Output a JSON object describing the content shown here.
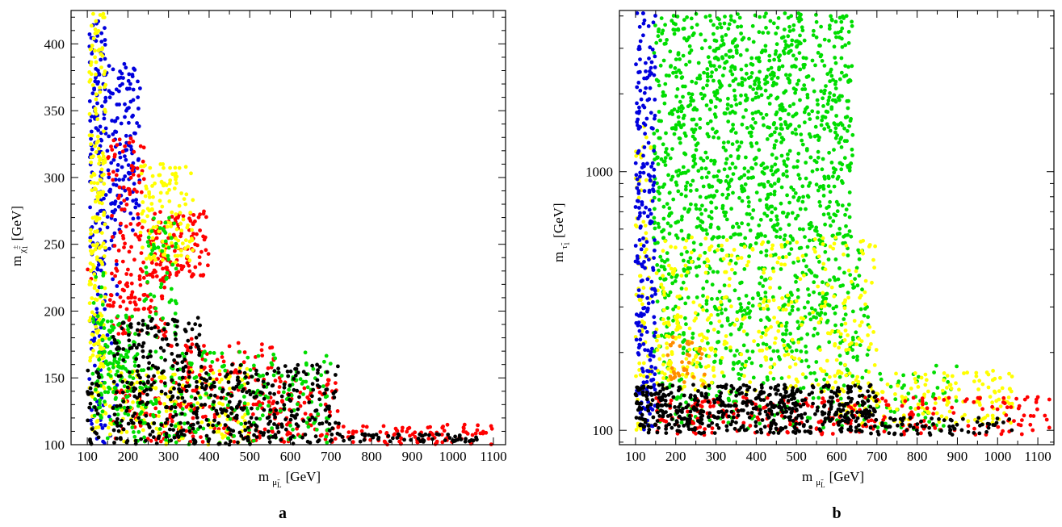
{
  "chart_data": [
    {
      "type": "scatter",
      "panel_label": "a",
      "xlabel": {
        "main": "m",
        "sub": "μ̃",
        "subsub": "L",
        "unit": "[GeV]"
      },
      "ylabel": {
        "main": "m",
        "sub": "χ̃",
        "sup": "±",
        "subsub": "1",
        "unit": "[GeV]"
      },
      "xlim": [
        60,
        1130
      ],
      "ylim": [
        100,
        425
      ],
      "yscale": "linear",
      "xticks": [
        100,
        200,
        300,
        400,
        500,
        600,
        700,
        800,
        900,
        1000,
        1100
      ],
      "yticks": [
        100,
        150,
        200,
        250,
        300,
        350,
        400
      ],
      "grid": false,
      "legend": "none",
      "series": [
        {
          "color": "#0000dd",
          "regions": [
            {
              "x": [
                105,
                145
              ],
              "y": [
                100,
                420
              ],
              "n": 160
            },
            {
              "x": [
                145,
                230
              ],
              "y": [
                260,
                385
              ],
              "n": 140
            },
            {
              "x": [
                120,
                175
              ],
              "y": [
                100,
                260
              ],
              "n": 40
            }
          ]
        },
        {
          "color": "#ff0000",
          "regions": [
            {
              "x": [
                150,
                240
              ],
              "y": [
                200,
                330
              ],
              "n": 110
            },
            {
              "x": [
                250,
                400
              ],
              "y": [
                225,
                275
              ],
              "n": 130
            },
            {
              "x": [
                150,
                300
              ],
              "y": [
                180,
                230
              ],
              "n": 60
            },
            {
              "x": [
                160,
                720
              ],
              "y": [
                102,
                150
              ],
              "n": 260
            },
            {
              "x": [
                720,
                1110
              ],
              "y": [
                100,
                115
              ],
              "n": 90
            },
            {
              "x": [
                300,
                560
              ],
              "y": [
                150,
                180
              ],
              "n": 60
            },
            {
              "x": [
                100,
                110
              ],
              "y": [
                220,
                232
              ],
              "n": 3
            }
          ]
        },
        {
          "color": "#ffff00",
          "regions": [
            {
              "x": [
                105,
                145
              ],
              "y": [
                110,
                425
              ],
              "n": 220
            },
            {
              "x": [
                230,
                360
              ],
              "y": [
                235,
                310
              ],
              "n": 130
            },
            {
              "x": [
                140,
                500
              ],
              "y": [
                100,
                160
              ],
              "n": 160
            }
          ]
        },
        {
          "color": "#00dd00",
          "regions": [
            {
              "x": [
                130,
                220
              ],
              "y": [
                120,
                200
              ],
              "n": 90
            },
            {
              "x": [
                240,
                320
              ],
              "y": [
                180,
                270
              ],
              "n": 60
            },
            {
              "x": [
                150,
                700
              ],
              "y": [
                100,
                170
              ],
              "n": 260
            },
            {
              "x": [
                110,
                140
              ],
              "y": [
                120,
                230
              ],
              "n": 30
            }
          ]
        },
        {
          "color": "#000000",
          "regions": [
            {
              "x": [
                160,
                720
              ],
              "y": [
                100,
                160
              ],
              "n": 420
            },
            {
              "x": [
                160,
                380
              ],
              "y": [
                160,
                195
              ],
              "n": 90
            },
            {
              "x": [
                720,
                1060
              ],
              "y": [
                102,
                108
              ],
              "n": 60
            },
            {
              "x": [
                100,
                130
              ],
              "y": [
                100,
                160
              ],
              "n": 30
            }
          ]
        }
      ]
    },
    {
      "type": "scatter",
      "panel_label": "b",
      "xlabel": {
        "main": "m",
        "sub": "μ̃",
        "subsub": "L",
        "unit": "[GeV]"
      },
      "ylabel": {
        "main": "m",
        "sub": "τ̃",
        "subsub": "1",
        "unit": "[GeV]"
      },
      "xlim": [
        60,
        1140
      ],
      "ylim": [
        88,
        4200
      ],
      "yscale": "log",
      "xticks": [
        100,
        200,
        300,
        400,
        500,
        600,
        700,
        800,
        900,
        1000,
        1100
      ],
      "yticks": [
        100,
        1000
      ],
      "grid": false,
      "legend": "none",
      "series": [
        {
          "color": "#00dd00",
          "regions": [
            {
              "x": [
                145,
                640
              ],
              "y": [
                500,
                4100
              ],
              "n": 1150
            },
            {
              "x": [
                145,
                680
              ],
              "y": [
                180,
                500
              ],
              "n": 420
            },
            {
              "x": [
                150,
                900
              ],
              "y": [
                100,
                180
              ],
              "n": 200
            }
          ]
        },
        {
          "color": "#ffff00",
          "regions": [
            {
              "x": [
                100,
                140
              ],
              "y": [
                100,
                1500
              ],
              "n": 80
            },
            {
              "x": [
                150,
                700
              ],
              "y": [
                140,
                560
              ],
              "n": 320
            },
            {
              "x": [
                600,
                1040
              ],
              "y": [
                105,
                170
              ],
              "n": 170
            },
            {
              "x": [
                150,
                300
              ],
              "y": [
                150,
                260
              ],
              "n": 60
            }
          ]
        },
        {
          "color": "#ff8c00",
          "regions": [
            {
              "x": [
                180,
                280
              ],
              "y": [
                150,
                230
              ],
              "n": 35
            }
          ]
        },
        {
          "color": "#0000dd",
          "regions": [
            {
              "x": [
                100,
                150
              ],
              "y": [
                120,
                4100
              ],
              "n": 230
            },
            {
              "x": [
                110,
                150
              ],
              "y": [
                100,
                130
              ],
              "n": 15
            }
          ]
        },
        {
          "color": "#ff0000",
          "regions": [
            {
              "x": [
                150,
                1130
              ],
              "y": [
                96,
                135
              ],
              "n": 250
            }
          ]
        },
        {
          "color": "#000000",
          "regions": [
            {
              "x": [
                100,
                700
              ],
              "y": [
                97,
                150
              ],
              "n": 560
            },
            {
              "x": [
                700,
                1040
              ],
              "y": [
                96,
                112
              ],
              "n": 70
            }
          ]
        }
      ]
    }
  ]
}
